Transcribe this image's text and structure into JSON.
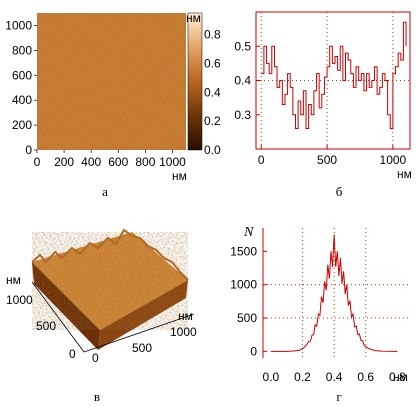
{
  "colors": {
    "surface_dark": "#5a2a06",
    "surface_mid": "#c0702a",
    "surface_light": "#f8d8a8",
    "plot_line": "#cc0000",
    "grid_dot": "#cc3300"
  },
  "chart_data": [
    {
      "id": "a",
      "type": "heatmap",
      "caption": "а",
      "unit_label": "нм",
      "xlim": [
        0,
        1100
      ],
      "ylim": [
        0,
        1100
      ],
      "x_ticks": [
        "0",
        "200",
        "400",
        "600",
        "800",
        "1000"
      ],
      "y_ticks": [
        "0",
        "200",
        "400",
        "600",
        "800",
        "1000"
      ],
      "colorbar": {
        "unit_label": "нм",
        "range": [
          0,
          0.95
        ],
        "ticks": [
          "0.0",
          "0.2",
          "0.4",
          "0.6",
          "0.8"
        ]
      }
    },
    {
      "id": "b",
      "type": "line",
      "caption": "б",
      "x_unit_label": "нм",
      "xlim": [
        -40,
        1130
      ],
      "ylim": [
        0.2,
        0.6
      ],
      "x_ticks": [
        "0",
        "500",
        "1000"
      ],
      "y_ticks": [
        "0.3",
        "0.4",
        "0.5"
      ],
      "grid_x": [
        0,
        500,
        1000
      ],
      "grid_y": [
        0.4
      ],
      "x": [
        0,
        20,
        40,
        60,
        80,
        100,
        120,
        140,
        160,
        180,
        200,
        220,
        240,
        260,
        280,
        300,
        320,
        340,
        360,
        380,
        400,
        420,
        440,
        460,
        480,
        500,
        520,
        540,
        560,
        580,
        600,
        620,
        640,
        660,
        680,
        700,
        720,
        740,
        760,
        780,
        800,
        820,
        840,
        860,
        880,
        900,
        920,
        940,
        960,
        980,
        1000,
        1020,
        1040,
        1060,
        1080,
        1100
      ],
      "values": [
        0.42,
        0.5,
        0.45,
        0.42,
        0.5,
        0.44,
        0.38,
        0.4,
        0.33,
        0.36,
        0.42,
        0.38,
        0.3,
        0.26,
        0.34,
        0.3,
        0.37,
        0.26,
        0.33,
        0.3,
        0.37,
        0.42,
        0.32,
        0.36,
        0.41,
        0.44,
        0.5,
        0.45,
        0.47,
        0.43,
        0.5,
        0.4,
        0.48,
        0.46,
        0.42,
        0.38,
        0.44,
        0.4,
        0.42,
        0.37,
        0.42,
        0.38,
        0.4,
        0.44,
        0.36,
        0.38,
        0.42,
        0.4,
        0.3,
        0.26,
        0.42,
        0.44,
        0.48,
        0.46,
        0.57,
        0.5
      ]
    },
    {
      "id": "v",
      "type": "3d-surface",
      "caption": "в",
      "unit_label_y": "нм",
      "unit_label_x": "нм",
      "y_ticks": [
        "0",
        "500",
        "1000"
      ],
      "x_ticks": [
        "0",
        "500",
        "1000"
      ]
    },
    {
      "id": "g",
      "type": "line",
      "caption": "г",
      "ylabel": "N",
      "x_unit_label": "нм",
      "xlim": [
        -0.05,
        0.88
      ],
      "ylim": [
        -100,
        1850
      ],
      "x_ticks": [
        "0.0",
        "0.2",
        "0.4",
        "0.6",
        "0.8"
      ],
      "y_ticks": [
        "0",
        "500",
        "1000",
        "1500"
      ],
      "grid_x": [
        0.2,
        0.4,
        0.6
      ],
      "grid_y": [
        500,
        1000
      ],
      "x": [
        0.0,
        0.05,
        0.1,
        0.14,
        0.18,
        0.2,
        0.22,
        0.24,
        0.26,
        0.28,
        0.3,
        0.32,
        0.34,
        0.36,
        0.38,
        0.4,
        0.42,
        0.44,
        0.46,
        0.48,
        0.5,
        0.52,
        0.54,
        0.56,
        0.58,
        0.6,
        0.62,
        0.66,
        0.7,
        0.8
      ],
      "values": [
        0,
        0,
        0,
        5,
        15,
        40,
        80,
        150,
        240,
        400,
        560,
        820,
        1050,
        1300,
        1500,
        1750,
        1500,
        1400,
        1200,
        1000,
        760,
        560,
        380,
        260,
        160,
        70,
        40,
        10,
        3,
        0
      ]
    }
  ]
}
